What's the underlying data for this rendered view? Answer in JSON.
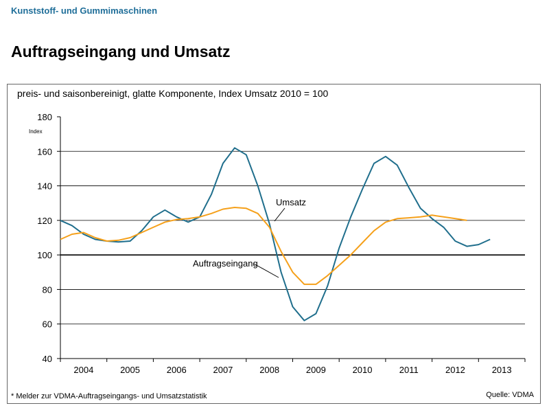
{
  "header": {
    "category": "Kunststoff- und Gummimaschinen",
    "title": "Auftragseingang und Umsatz"
  },
  "footer": {
    "note": "* Melder zur VDMA-Auftragseingangs- und Umsatzstatistik",
    "source": "Quelle: VDMA"
  },
  "chart_data": {
    "type": "line",
    "title": "preis- und saisonbereinigt, glatte Komponente, Index Umsatz 2010 = 100",
    "ylabel": "Index",
    "xlabel": "",
    "ylim": [
      40,
      180
    ],
    "yticks": [
      40,
      60,
      80,
      100,
      120,
      140,
      160,
      180
    ],
    "xlim": [
      2004,
      2014
    ],
    "xtick_labels": [
      "2004",
      "2005",
      "2006",
      "2007",
      "2008",
      "2009",
      "2010",
      "2011",
      "2012",
      "2013"
    ],
    "grid": true,
    "x": [
      2004,
      2004.25,
      2004.5,
      2004.75,
      2005,
      2005.25,
      2005.5,
      2005.75,
      2006,
      2006.25,
      2006.5,
      2006.75,
      2007,
      2007.25,
      2007.5,
      2007.75,
      2008,
      2008.25,
      2008.5,
      2008.75,
      2009,
      2009.25,
      2009.5,
      2009.75,
      2010,
      2010.25,
      2010.5,
      2010.75,
      2011,
      2011.25,
      2011.5,
      2011.75,
      2012,
      2012.25,
      2012.5,
      2012.75,
      2013,
      2013.25
    ],
    "series": [
      {
        "name": "Auftragseingang",
        "color": "#1f6e8c",
        "values": [
          120,
          117,
          112,
          109,
          108,
          107.5,
          108,
          114,
          122,
          126,
          122,
          119,
          122,
          135,
          153,
          162,
          158,
          140,
          118,
          90,
          70,
          62,
          66,
          82,
          104,
          122,
          138,
          153,
          157,
          152,
          139,
          127,
          121,
          116,
          108,
          105,
          106,
          109
        ]
      },
      {
        "name": "Umsatz",
        "color": "#f5a01a",
        "values": [
          109,
          112,
          113,
          110,
          108,
          108.5,
          110,
          113,
          116,
          119,
          120.5,
          121,
          122,
          124,
          126.5,
          127.5,
          127,
          124,
          116,
          102,
          90,
          83,
          83,
          88,
          94,
          100,
          107,
          114,
          119,
          121,
          121.5,
          122,
          123,
          122,
          121,
          120,
          null,
          null
        ]
      }
    ]
  }
}
